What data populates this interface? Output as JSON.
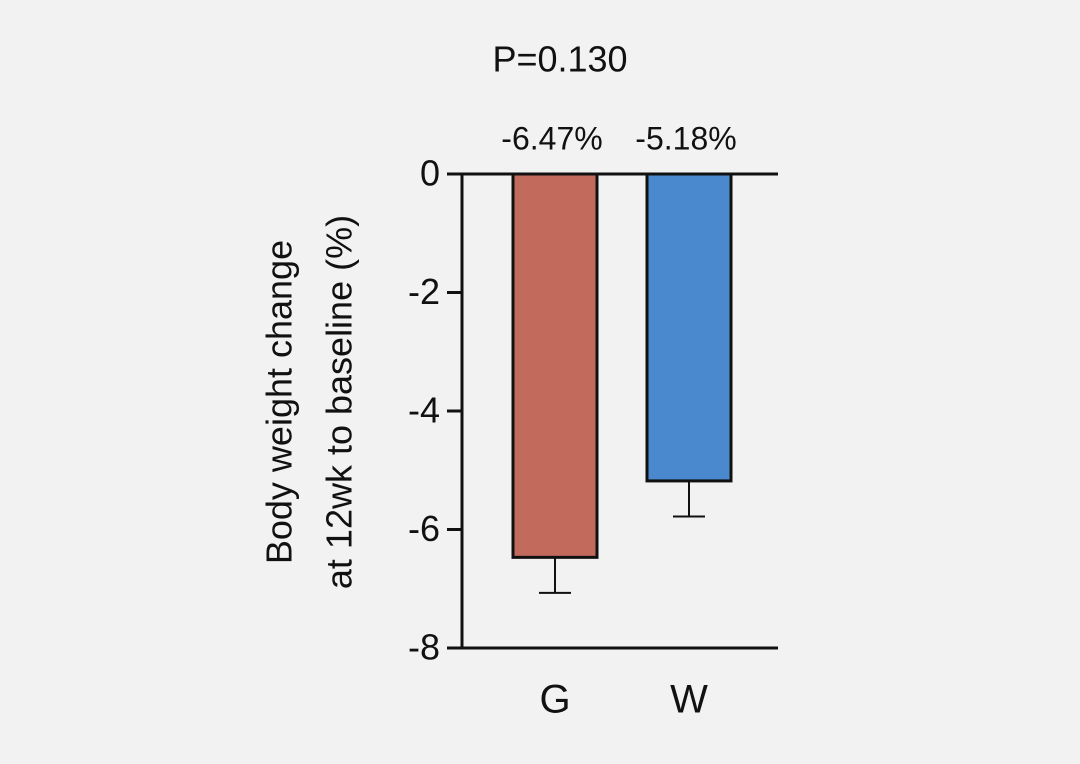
{
  "chart_data": {
    "type": "bar",
    "title": "P=0.130",
    "y_label": [
      "Body weight change",
      "at 12wk to baseline (%)"
    ],
    "categories": [
      "G",
      "W"
    ],
    "values": [
      -6.47,
      -5.18
    ],
    "value_labels": [
      "-6.47%",
      "-5.18%"
    ],
    "errors": [
      0.6,
      0.6
    ],
    "colors": [
      "#c26a5b",
      "#4a89cd"
    ],
    "ylim": [
      -8,
      0
    ],
    "yticks": [
      0,
      -2,
      -4,
      -6,
      -8
    ]
  }
}
